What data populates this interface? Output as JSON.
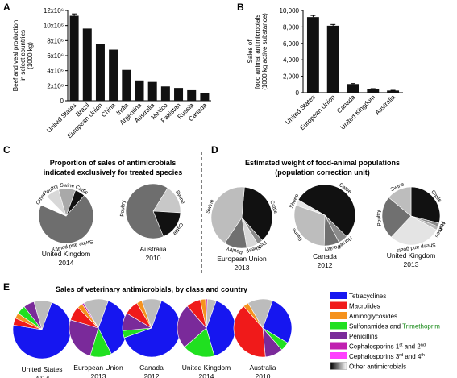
{
  "panels": {
    "A": {
      "letter": "A"
    },
    "B": {
      "letter": "B"
    },
    "C": {
      "letter": "C",
      "title_lines": [
        "Proportion of sales of antimicrobials",
        "indicated exclusively for treated species"
      ]
    },
    "D": {
      "letter": "D",
      "title_lines": [
        "Estimated weight of food-animal populations",
        "(population correction unit)"
      ]
    },
    "E": {
      "letter": "E",
      "title": "Sales of veterinary antimicrobials, by class and country"
    }
  },
  "colors": {
    "tetracyclines": "#1616f0",
    "macrolides": "#f01a1a",
    "aminoglycosides": "#f5921e",
    "sulfonamides": "#20e020",
    "penicillins": "#7a2a9a",
    "ceph12": "#c020b0",
    "ceph34": "#ff40ff",
    "trimethoprim_text": "#1a8a1a",
    "bar": "#111111"
  },
  "legend_E": [
    {
      "key": "tetracyclines",
      "label": "Tetracyclines"
    },
    {
      "key": "macrolides",
      "label": "Macrolides"
    },
    {
      "key": "aminoglycosides",
      "label": "Aminoglycosides"
    },
    {
      "key": "sulfonamides",
      "label": "Sulfonamides and",
      "extra": "Trimethoprim"
    },
    {
      "key": "penicillins",
      "label": "Penicillins"
    },
    {
      "key": "ceph12",
      "label": "Cephalosporins 1",
      "sup1": "st",
      "mid": " and 2",
      "sup2": "nd"
    },
    {
      "key": "ceph34",
      "label": "Cephalosporins 3",
      "sup1": "rd",
      "mid": " and 4",
      "sup2": "th"
    },
    {
      "key": "other",
      "label": "Other antimicrobials"
    }
  ],
  "chart_data": [
    {
      "id": "A",
      "type": "bar",
      "ylabel_lines": [
        "Beef and veal production",
        "in select countries",
        "(1000 kg)"
      ],
      "categories": [
        "United States",
        "Brazil",
        "European Union",
        "China",
        "India",
        "Argentina",
        "Australia",
        "Mexico",
        "Pakistan",
        "Russia",
        "Canada"
      ],
      "values": [
        11300000,
        9600000,
        7500000,
        6800000,
        4100000,
        2700000,
        2500000,
        1900000,
        1700000,
        1400000,
        1050000
      ],
      "error": [
        250000,
        0,
        0,
        0,
        0,
        0,
        0,
        0,
        0,
        0,
        0
      ],
      "ylim": [
        0,
        12000000
      ],
      "yticks": [
        0,
        2000000,
        4000000,
        6000000,
        8000000,
        10000000,
        12000000
      ],
      "ytick_labels": [
        "0",
        "2x10⁶",
        "4x10⁶",
        "6x10⁶",
        "8x10⁶",
        "10x10⁶",
        "12x10⁶"
      ]
    },
    {
      "id": "B",
      "type": "bar",
      "ylabel_lines": [
        "Sales of",
        "food animal antimicrobials",
        "(1000 kg active substance)"
      ],
      "categories": [
        "United States",
        "European Union",
        "Canada",
        "United Kingdom",
        "Australia"
      ],
      "values": [
        9200,
        8150,
        1050,
        430,
        260
      ],
      "error": [
        200,
        150,
        60,
        60,
        30
      ],
      "ylim": [
        0,
        10000
      ],
      "yticks": [
        0,
        2000,
        4000,
        6000,
        8000,
        10000
      ],
      "ytick_labels": [
        "0",
        "2,000",
        "4,000",
        "6,000",
        "8,000",
        "10,000"
      ]
    },
    {
      "id": "C",
      "type": "pie",
      "pies": [
        {
          "country": "United Kingdom",
          "year": "2014",
          "slices": [
            {
              "label": "Cattle",
              "value": 6,
              "color": "#111111"
            },
            {
              "label": "Swine and poultry",
              "value": 70,
              "color": "#6e6e6e"
            },
            {
              "label": "Other",
              "value": 6,
              "color": "#ffffff"
            },
            {
              "label": "Poultry",
              "value": 8,
              "color": "#d8d8d8"
            },
            {
              "label": "Swine",
              "value": 10,
              "color": "#a9a9a9"
            }
          ]
        },
        {
          "country": "Australia",
          "year": "2010",
          "slices": [
            {
              "label": "Swine",
              "value": 17,
              "color": "#c8c8c8"
            },
            {
              "label": "Cattle",
              "value": 18,
              "color": "#111111"
            },
            {
              "label": "Poultry",
              "value": 65,
              "color": "#6e6e6e"
            }
          ]
        }
      ]
    },
    {
      "id": "D",
      "type": "pie",
      "pies": [
        {
          "country": "European Union",
          "year": "2013",
          "slices": [
            {
              "label": "Cattle",
              "value": 37,
              "color": "#111111"
            },
            {
              "label": "Fish",
              "value": 3,
              "color": "#8a8a8a"
            },
            {
              "label": "Sheep",
              "value": 6,
              "color": "#d8d8d8"
            },
            {
              "label": "Poultry",
              "value": 12,
              "color": "#707070"
            },
            {
              "label": "Swine",
              "value": 42,
              "color": "#bdbdbd"
            }
          ]
        },
        {
          "country": "Canada",
          "year": "2012",
          "slices": [
            {
              "label": "Cattle",
              "value": 54,
              "color": "#111111"
            },
            {
              "label": "Horses",
              "value": 5,
              "color": "#8a8a8a"
            },
            {
              "label": "Poultry",
              "value": 8,
              "color": "#707070"
            },
            {
              "label": "Swine",
              "value": 30,
              "color": "#bdbdbd"
            },
            {
              "label": "Sheep",
              "value": 3,
              "color": "#e6e6e6"
            }
          ]
        },
        {
          "country": "United Kingdom",
          "year": "2013",
          "slices": [
            {
              "label": "Cattle",
              "value": 29,
              "color": "#111111"
            },
            {
              "label": "Fish",
              "value": 2,
              "color": "#8a8a8a"
            },
            {
              "label": "Horses",
              "value": 2,
              "color": "#b5b5b5"
            },
            {
              "label": "Sheep and goats",
              "value": 29,
              "color": "#e4e4e4"
            },
            {
              "label": "Poultry",
              "value": 24,
              "color": "#707070"
            },
            {
              "label": "Swine",
              "value": 14,
              "color": "#bdbdbd"
            }
          ]
        }
      ]
    },
    {
      "id": "E",
      "type": "pie",
      "pies": [
        {
          "country": "United States",
          "year": "2014",
          "slices": [
            {
              "key": "tetracyclines",
              "value": 72
            },
            {
              "key": "macrolides",
              "value": 4
            },
            {
              "key": "aminoglycosides",
              "value": 3
            },
            {
              "key": "sulfonamides",
              "value": 5
            },
            {
              "key": "penicillins",
              "value": 6
            },
            {
              "key": "other",
              "value": 10
            }
          ]
        },
        {
          "country": "European Union",
          "year": "2013",
          "slices": [
            {
              "key": "tetracyclines",
              "value": 37
            },
            {
              "key": "sulfonamides",
              "value": 12
            },
            {
              "key": "penicillins",
              "value": 25
            },
            {
              "key": "macrolides",
              "value": 8
            },
            {
              "key": "aminoglycosides",
              "value": 3
            },
            {
              "key": "ceph12",
              "value": 1
            },
            {
              "key": "other",
              "value": 14
            }
          ]
        },
        {
          "country": "Canada",
          "year": "2012",
          "slices": [
            {
              "key": "tetracyclines",
              "value": 64
            },
            {
              "key": "sulfonamides",
              "value": 4
            },
            {
              "key": "penicillins",
              "value": 10
            },
            {
              "key": "macrolides",
              "value": 8
            },
            {
              "key": "aminoglycosides",
              "value": 3
            },
            {
              "key": "other",
              "value": 11
            }
          ]
        },
        {
          "country": "United Kingdom",
          "year": "2014",
          "slices": [
            {
              "key": "tetracyclines",
              "value": 40
            },
            {
              "key": "sulfonamides",
              "value": 18
            },
            {
              "key": "penicillins",
              "value": 25
            },
            {
              "key": "macrolides",
              "value": 8
            },
            {
              "key": "aminoglycosides",
              "value": 3
            },
            {
              "key": "ceph12",
              "value": 1
            },
            {
              "key": "other",
              "value": 5
            }
          ]
        },
        {
          "country": "Australia",
          "year": "2010",
          "slices": [
            {
              "key": "tetracyclines",
              "value": 28
            },
            {
              "key": "sulfonamides",
              "value": 5
            },
            {
              "key": "penicillins",
              "value": 10
            },
            {
              "key": "macrolides",
              "value": 40
            },
            {
              "key": "aminoglycosides",
              "value": 3
            },
            {
              "key": "other",
              "value": 14
            }
          ]
        }
      ]
    }
  ]
}
